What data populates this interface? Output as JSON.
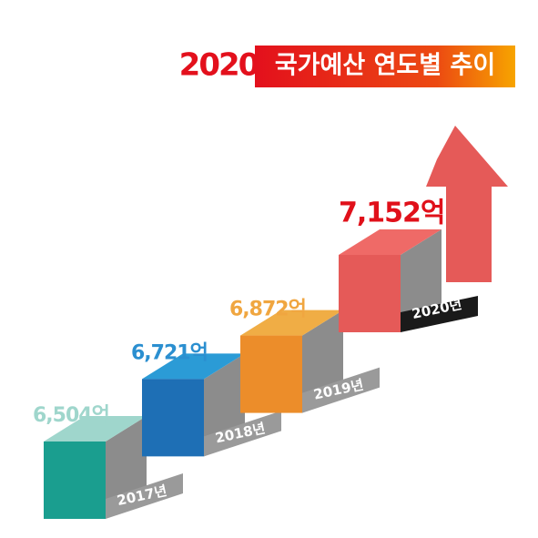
{
  "chart_data": {
    "type": "stairs",
    "title_year": "2020",
    "title": "국가예산 연도별 추이",
    "categories": [
      "2017년",
      "2018년",
      "2019년",
      "2020년"
    ],
    "values": [
      6504,
      6721,
      6872,
      7152
    ],
    "value_labels": [
      "6,504억",
      "6,721억",
      "6,872억",
      "7,152억"
    ],
    "series_colors": [
      {
        "top": "#9fd6cc",
        "front": "#1a9e8f",
        "label": "#9fd6cc"
      },
      {
        "top": "#2b9bd6",
        "front": "#1e6fb5",
        "label": "#2b8fd0"
      },
      {
        "top": "#f0ad45",
        "front": "#ec8d2a",
        "label": "#f0a640"
      },
      {
        "top": "#ef6a67",
        "front": "#e55a58",
        "label": "#e0101a"
      }
    ]
  }
}
